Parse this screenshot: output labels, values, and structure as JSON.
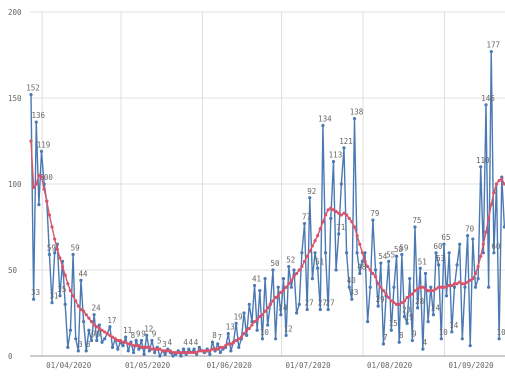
{
  "chart_data": {
    "type": "line",
    "grid": true,
    "ylim": [
      0,
      200
    ],
    "yticks": [
      0,
      50,
      100,
      150,
      200
    ],
    "categories": [
      null,
      null,
      null,
      null,
      null,
      "01/04/2020",
      null,
      null,
      null,
      null,
      null,
      null,
      null,
      null,
      null,
      null,
      null,
      null,
      null,
      null,
      null,
      null,
      null,
      null,
      null,
      null,
      null,
      null,
      null,
      null,
      null,
      null,
      null,
      null,
      null,
      "01/05/2020",
      null,
      null,
      null,
      null,
      null,
      null,
      null,
      null,
      null,
      null,
      null,
      null,
      null,
      null,
      null,
      null,
      null,
      null,
      null,
      null,
      null,
      null,
      null,
      null,
      null,
      null,
      null,
      null,
      null,
      null,
      "01/06/2020",
      null,
      null,
      null,
      null,
      null,
      null,
      null,
      null,
      null,
      null,
      null,
      null,
      null,
      null,
      null,
      null,
      null,
      null,
      null,
      null,
      null,
      null,
      null,
      null,
      null,
      null,
      null,
      null,
      null,
      "01/07/2020",
      null,
      null,
      null,
      null,
      null,
      null,
      null,
      null,
      null,
      null,
      null,
      null,
      null,
      null,
      null,
      null,
      null,
      null,
      null,
      null,
      null,
      null,
      null,
      null,
      null,
      null,
      null,
      null,
      null,
      null,
      "01/08/2020",
      null,
      null,
      null,
      null,
      null,
      null,
      null,
      null,
      null,
      null,
      null,
      null,
      null,
      null,
      null,
      null,
      null,
      null,
      null,
      null,
      null,
      null,
      null,
      null,
      null,
      null,
      null,
      null,
      null,
      null,
      "01/09/2020",
      null,
      null,
      null,
      null,
      null,
      null,
      null,
      null,
      null,
      null,
      null,
      null,
      null,
      null,
      null,
      null,
      null,
      null,
      null,
      null,
      null,
      null
    ],
    "series": [
      {
        "color": "#4a79b3",
        "marker": true,
        "values": [
          152,
          33,
          136,
          88,
          119,
          100,
          90,
          59,
          31,
          60,
          65,
          35,
          55,
          30,
          5,
          15,
          59,
          10,
          3,
          44,
          20,
          3,
          15,
          9,
          24,
          9,
          18,
          8,
          10,
          13,
          17,
          5,
          10,
          4,
          8,
          6,
          11,
          3,
          8,
          2,
          9,
          4,
          9,
          1,
          12,
          3,
          9,
          2,
          5,
          0,
          3,
          1,
          4,
          2,
          0,
          1,
          3,
          0,
          4,
          1,
          4,
          2,
          4,
          1,
          5,
          3,
          2,
          4,
          1,
          8,
          3,
          7,
          2,
          4,
          5,
          13,
          3,
          8,
          19,
          5,
          10,
          25,
          12,
          30,
          20,
          41,
          15,
          38,
          10,
          45,
          18,
          30,
          50,
          10,
          40,
          24,
          45,
          12,
          52,
          40,
          50,
          25,
          30,
          60,
          77,
          27,
          92,
          45,
          60,
          51,
          27,
          134,
          60,
          27,
          80,
          113,
          50,
          71,
          100,
          121,
          60,
          40,
          33,
          138,
          60,
          48,
          55,
          60,
          20,
          40,
          79,
          50,
          29,
          54,
          7,
          35,
          55,
          15,
          40,
          58,
          8,
          59,
          23,
          19,
          45,
          9,
          75,
          28,
          51,
          4,
          48,
          20,
          40,
          24,
          60,
          53,
          10,
          65,
          35,
          60,
          14,
          40,
          53,
          65,
          10,
          40,
          70,
          6,
          68,
          40,
          45,
          110,
          60,
          146,
          40,
          177,
          60,
          100,
          10,
          104,
          75
        ],
        "value_labels": [
          152,
          33,
          136,
          null,
          119,
          100,
          null,
          59,
          31,
          null,
          null,
          35,
          null,
          null,
          null,
          null,
          59,
          null,
          3,
          44,
          null,
          3,
          null,
          9,
          24,
          9,
          null,
          null,
          null,
          null,
          17,
          null,
          null,
          null,
          null,
          null,
          11,
          null,
          8,
          null,
          9,
          null,
          9,
          null,
          12,
          null,
          9,
          null,
          5,
          null,
          3,
          null,
          4,
          null,
          null,
          null,
          null,
          null,
          4,
          null,
          4,
          null,
          4,
          null,
          null,
          null,
          null,
          null,
          null,
          8,
          null,
          7,
          null,
          null,
          null,
          13,
          null,
          null,
          19,
          null,
          null,
          null,
          null,
          null,
          null,
          41,
          null,
          null,
          10,
          null,
          null,
          null,
          50,
          null,
          null,
          24,
          null,
          12,
          52,
          null,
          null,
          null,
          null,
          null,
          77,
          27,
          92,
          null,
          null,
          51,
          27,
          134,
          null,
          27,
          null,
          113,
          null,
          71,
          null,
          121,
          null,
          40,
          33,
          138,
          null,
          48,
          null,
          null,
          null,
          null,
          79,
          null,
          29,
          54,
          7,
          null,
          55,
          15,
          null,
          58,
          8,
          59,
          23,
          19,
          null,
          9,
          75,
          28,
          51,
          4,
          null,
          null,
          null,
          24,
          60,
          53,
          10,
          65,
          null,
          null,
          14,
          null,
          null,
          null,
          null,
          null,
          70,
          null,
          null,
          null,
          null,
          110,
          null,
          146,
          null,
          177,
          60,
          null,
          10,
          null,
          null
        ]
      },
      {
        "color": "#d9546a",
        "marker": true,
        "values": [
          125,
          98,
          100,
          105,
          104,
          97,
          90,
          82,
          75,
          68,
          62,
          57,
          52,
          47,
          42,
          38,
          35,
          32,
          29,
          27,
          26,
          24,
          22,
          20,
          18,
          17,
          16,
          15,
          14,
          13,
          12,
          11,
          10,
          9,
          9,
          8,
          8,
          7,
          7,
          6,
          6,
          6,
          5,
          5,
          5,
          5,
          4,
          4,
          4,
          4,
          3,
          3,
          3,
          3,
          2,
          2,
          2,
          2,
          2,
          2,
          2,
          2,
          2,
          2,
          3,
          3,
          3,
          3,
          3,
          4,
          4,
          4,
          5,
          5,
          6,
          7,
          7,
          8,
          9,
          10,
          11,
          13,
          15,
          16,
          18,
          20,
          21,
          23,
          24,
          26,
          28,
          30,
          32,
          34,
          35,
          37,
          38,
          40,
          42,
          44,
          46,
          48,
          50,
          52,
          55,
          58,
          61,
          64,
          67,
          70,
          74,
          78,
          82,
          85,
          86,
          85,
          84,
          83,
          82,
          83,
          82,
          80,
          78,
          75,
          70,
          65,
          60,
          55,
          52,
          50,
          48,
          46,
          42,
          40,
          38,
          36,
          34,
          32,
          31,
          30,
          30,
          31,
          32,
          34,
          35,
          36,
          38,
          39,
          40,
          40,
          39,
          38,
          38,
          38,
          39,
          40,
          40,
          40,
          40,
          41,
          41,
          42,
          42,
          43,
          42,
          42,
          43,
          44,
          45,
          48,
          52,
          58,
          65,
          72,
          80,
          88,
          95,
          100,
          102,
          103,
          100
        ]
      }
    ]
  }
}
